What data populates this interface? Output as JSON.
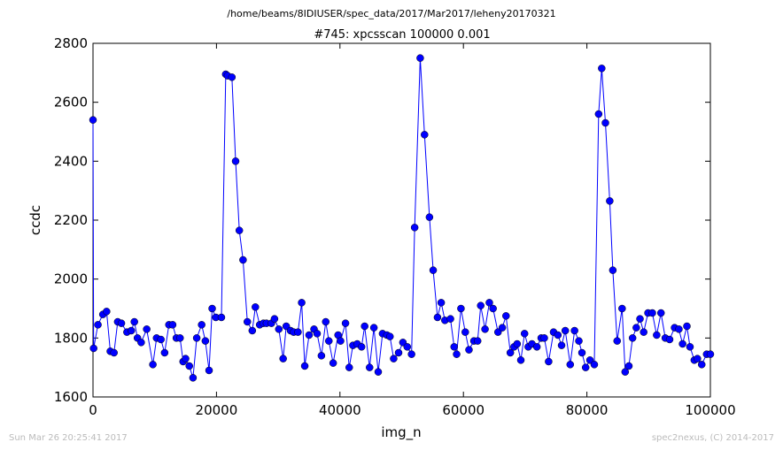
{
  "figure": {
    "suptitle": "/home/beams/8IDIUSER/spec_data/2017/Mar2017/leheny20170321",
    "footer_left": "Sun Mar 26 20:25:41 2017",
    "footer_right": "spec2nexus, (C) 2014-2017"
  },
  "chart_data": {
    "type": "line",
    "title": "#745: xpcsscan 100000 0.001",
    "xlabel": "img_n",
    "ylabel": "ccdc",
    "xlim": [
      0,
      100000
    ],
    "ylim": [
      1600,
      2800
    ],
    "xticks": [
      0,
      20000,
      40000,
      60000,
      80000,
      100000
    ],
    "xtick_labels": [
      "0",
      "20000",
      "40000",
      "60000",
      "80000",
      "100000"
    ],
    "yticks": [
      1600,
      1800,
      2000,
      2200,
      2400,
      2600,
      2800
    ],
    "ytick_labels": [
      "1600",
      "1800",
      "2000",
      "2200",
      "2400",
      "2600",
      "2800"
    ],
    "grid": false,
    "marker": "circle",
    "color": "#0000ff",
    "series": [
      {
        "x": [
          0,
          100,
          800,
          1600,
          2200,
          2800,
          3400,
          4000,
          4600,
          5500,
          6200,
          6700,
          7200,
          7800,
          8700,
          9700,
          10300,
          11000,
          11600,
          12300,
          12900,
          13500,
          14100,
          14600,
          15000,
          15600,
          16200,
          16800,
          17600,
          18200,
          18800,
          19300,
          19900,
          20800,
          21500,
          21800,
          22500,
          23100,
          23700,
          24300,
          25000,
          25800,
          26300,
          27000,
          27600,
          28100,
          28900,
          29400,
          30100,
          30800,
          31300,
          32000,
          32500,
          33200,
          33800,
          34300,
          35000,
          35800,
          36300,
          37000,
          37700,
          38200,
          38900,
          39700,
          40100,
          40900,
          41500,
          42100,
          42800,
          43500,
          44000,
          44800,
          45500,
          46200,
          46900,
          47600,
          48100,
          48700,
          49500,
          50200,
          50900,
          51600,
          52100,
          53000,
          53700,
          54500,
          55100,
          55800,
          56400,
          57000,
          57900,
          58500,
          58900,
          59600,
          60300,
          60900,
          61700,
          62300,
          62800,
          63500,
          64200,
          64800,
          65600,
          66300,
          66900,
          67600,
          68200,
          68700,
          69300,
          69900,
          70500,
          71100,
          71900,
          72600,
          73100,
          73800,
          74600,
          75300,
          75900,
          76500,
          77300,
          78000,
          78700,
          79200,
          79800,
          80500,
          81200,
          81900,
          82400,
          83000,
          83700,
          84200,
          84900,
          85700,
          86200,
          86800,
          87400,
          88000,
          88600,
          89200,
          89900,
          90600,
          91300,
          92000,
          92700,
          93400,
          94200,
          94900,
          95500,
          96200,
          96700,
          97400,
          97900,
          98600,
          99400,
          100000
        ],
        "values": [
          2540,
          1765,
          1845,
          1880,
          1890,
          1755,
          1750,
          1855,
          1850,
          1820,
          1825,
          1855,
          1800,
          1785,
          1830,
          1710,
          1800,
          1795,
          1750,
          1845,
          1845,
          1800,
          1800,
          1720,
          1730,
          1705,
          1665,
          1800,
          1845,
          1790,
          1690,
          1900,
          1870,
          1870,
          2695,
          2690,
          2685,
          2400,
          2165,
          2065,
          1855,
          1825,
          1905,
          1845,
          1850,
          1850,
          1850,
          1865,
          1830,
          1730,
          1840,
          1825,
          1820,
          1820,
          1920,
          1705,
          1810,
          1830,
          1815,
          1740,
          1855,
          1790,
          1715,
          1810,
          1790,
          1850,
          1700,
          1775,
          1780,
          1770,
          1840,
          1700,
          1835,
          1685,
          1815,
          1810,
          1805,
          1730,
          1750,
          1785,
          1770,
          1745,
          2175,
          2750,
          2490,
          2210,
          2030,
          1870,
          1920,
          1860,
          1865,
          1770,
          1745,
          1900,
          1820,
          1760,
          1790,
          1790,
          1910,
          1830,
          1920,
          1900,
          1820,
          1835,
          1875,
          1750,
          1770,
          1780,
          1725,
          1815,
          1770,
          1780,
          1770,
          1800,
          1800,
          1720,
          1820,
          1810,
          1775,
          1825,
          1710,
          1825,
          1790,
          1750,
          1700,
          1725,
          1710,
          2560,
          2715,
          2530,
          2265,
          2030,
          1790,
          1900,
          1685,
          1705,
          1800,
          1835,
          1865,
          1820,
          1885,
          1885,
          1810,
          1885,
          1800,
          1795,
          1835,
          1830,
          1780,
          1840,
          1770,
          1725,
          1730,
          1710,
          1745,
          1745
        ]
      }
    ]
  }
}
